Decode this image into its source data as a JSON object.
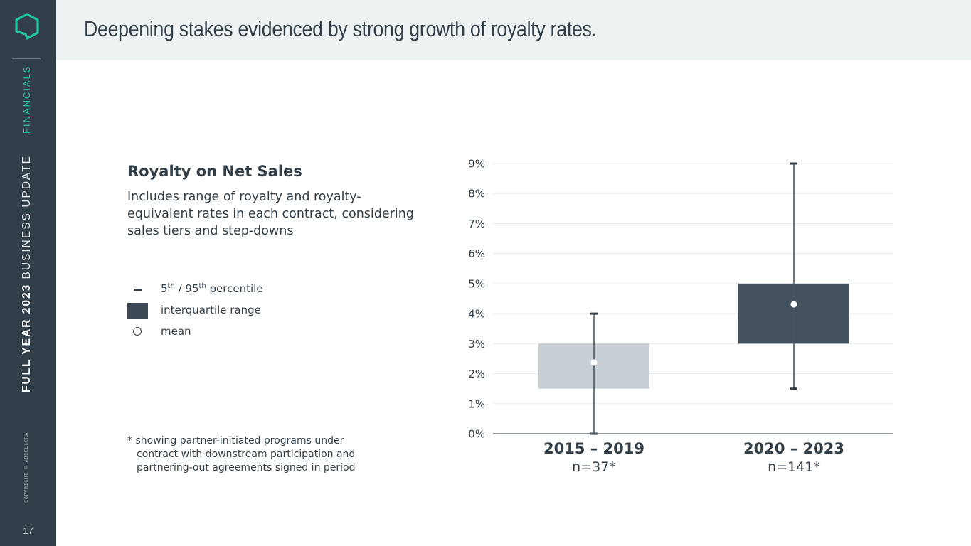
{
  "sidebar": {
    "section": "FINANCIALS",
    "deck_title_bold": "FULL YEAR 2023",
    "deck_title_rest": " BUSINESS UPDATE",
    "copyright": "COPYRIGHT © ABCELLERA",
    "page_number": "17",
    "accent_color": "#1fc8a0"
  },
  "header": {
    "title": "Deepening stakes evidenced by strong growth of royalty rates."
  },
  "panel": {
    "title": "Royalty on Net Sales",
    "description": "Includes range of royalty and royalty-equivalent rates in each contract, considering sales tiers and step-downs",
    "legend": {
      "percentile_a": "5",
      "percentile_a_sup": "th",
      "percentile_sep": " / ",
      "percentile_b": "95",
      "percentile_b_sup": "th",
      "percentile_rest": " percentile",
      "iqr": "interquartile range",
      "mean": "mean"
    },
    "footnote_line1": "* showing partner-initiated programs under",
    "footnote_line2": "contract with downstream participation and",
    "footnote_line3": "partnering-out agreements signed in period"
  },
  "chart_data": {
    "type": "boxplot",
    "title": "Royalty on Net Sales",
    "xlabel": "",
    "ylabel": "",
    "ylim": [
      0,
      9
    ],
    "y_unit": "%",
    "yticks": [
      "0%",
      "1%",
      "2%",
      "3%",
      "4%",
      "5%",
      "6%",
      "7%",
      "8%",
      "9%"
    ],
    "grid": true,
    "legend_placement": "left",
    "categories": [
      {
        "label": "2015 – 2019",
        "sublabel": "n=37*",
        "p5": 0,
        "q1": 1.5,
        "q3": 3.0,
        "p95": 4.0,
        "mean": 2.37,
        "color": "#c8cfd4"
      },
      {
        "label": "2020 – 2023",
        "sublabel": "n=141*",
        "p5": 1.5,
        "q1": 3.0,
        "q3": 5.0,
        "p95": 9.0,
        "mean": 4.31,
        "color": "#44525e"
      }
    ]
  }
}
